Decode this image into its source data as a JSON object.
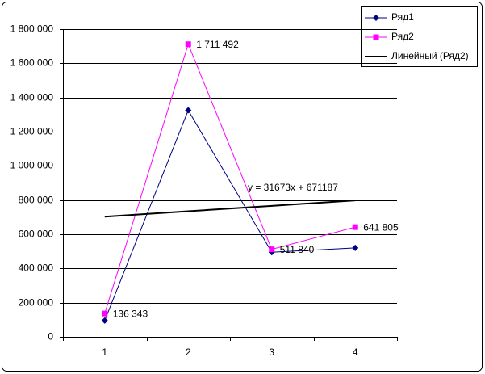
{
  "chart_data": {
    "type": "line",
    "categories": [
      "1",
      "2",
      "3",
      "4"
    ],
    "series": [
      {
        "name": "Ряд1",
        "color": "#000080",
        "marker": "diamond",
        "values": [
          95000,
          1325000,
          495000,
          520000
        ]
      },
      {
        "name": "Ряд2",
        "color": "#ff00ff",
        "marker": "square",
        "values": [
          136343,
          1711492,
          511840,
          641805
        ],
        "value_labels": [
          "136 343",
          "1 711 492",
          "511 840",
          "641 805"
        ]
      },
      {
        "name": "Линейный (Ряд2)",
        "color": "#000000",
        "marker": null,
        "values": [
          702860,
          734533,
          766206,
          797879
        ]
      }
    ],
    "annotation": "y = 31673x + 671187",
    "ylim": [
      0,
      1800000
    ],
    "yticks": [
      0,
      {
        "value": 200000,
        "label": "200 000"
      },
      {
        "value": 400000,
        "label": "400 000"
      },
      {
        "value": 600000,
        "label": "600 000"
      },
      {
        "value": 800000,
        "label": "800 000"
      },
      {
        "value": 1000000,
        "label": "1 000 000"
      },
      {
        "value": 1200000,
        "label": "1 200 000"
      },
      {
        "value": 1400000,
        "label": "1 400 000"
      },
      {
        "value": 1600000,
        "label": "1 600 000"
      },
      {
        "value": 1800000,
        "label": "1 800 000"
      }
    ],
    "grid": true,
    "legend": "top-right"
  }
}
